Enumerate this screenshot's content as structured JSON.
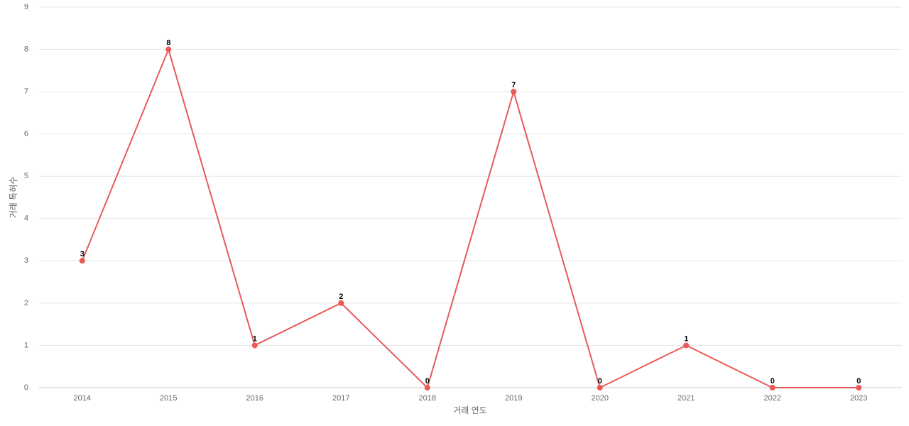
{
  "chart_data": {
    "type": "line",
    "x_label": "거래 연도",
    "y_label": "거래 특허수",
    "categories": [
      "2014",
      "2015",
      "2016",
      "2017",
      "2018",
      "2019",
      "2020",
      "2021",
      "2022",
      "2023"
    ],
    "values": [
      3,
      8,
      1,
      2,
      0,
      7,
      0,
      1,
      0,
      0
    ],
    "color": "#e85a5a",
    "ylim": [
      0,
      9
    ],
    "yticks": [
      0,
      1,
      2,
      3,
      4,
      5,
      6,
      7,
      8,
      9
    ],
    "grid": true
  }
}
